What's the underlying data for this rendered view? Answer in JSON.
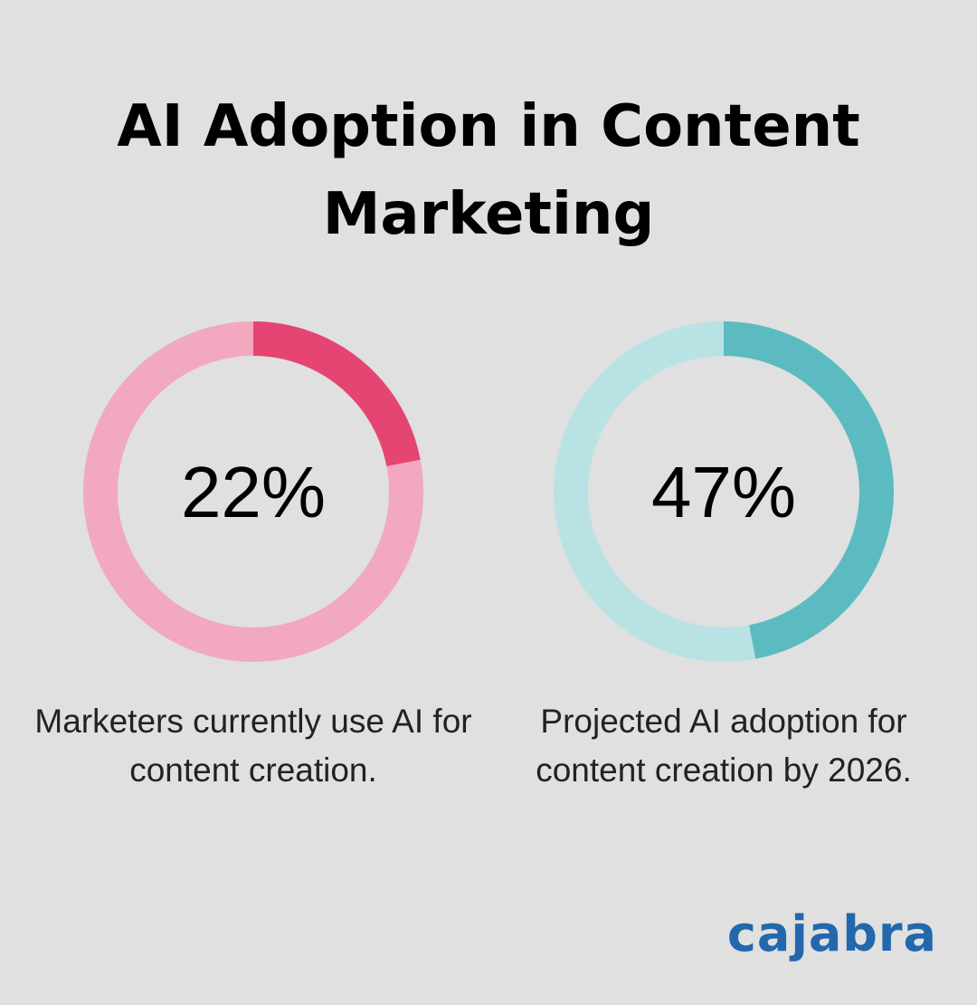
{
  "title": "AI Adoption in Content Marketing",
  "logo": "cajabra",
  "chart_data": [
    {
      "type": "donut",
      "values": [
        22
      ],
      "value_labels": [
        "22%"
      ],
      "caption": "Marketers currently use AI for content creation.",
      "color": "#e54572",
      "track_color": "#f2a8bf"
    },
    {
      "type": "donut",
      "values": [
        47
      ],
      "value_labels": [
        "47%"
      ],
      "caption": "Projected AI adoption for content creation by 2026.",
      "color": "#5bbbc0",
      "track_color": "#b9e2e5"
    }
  ]
}
